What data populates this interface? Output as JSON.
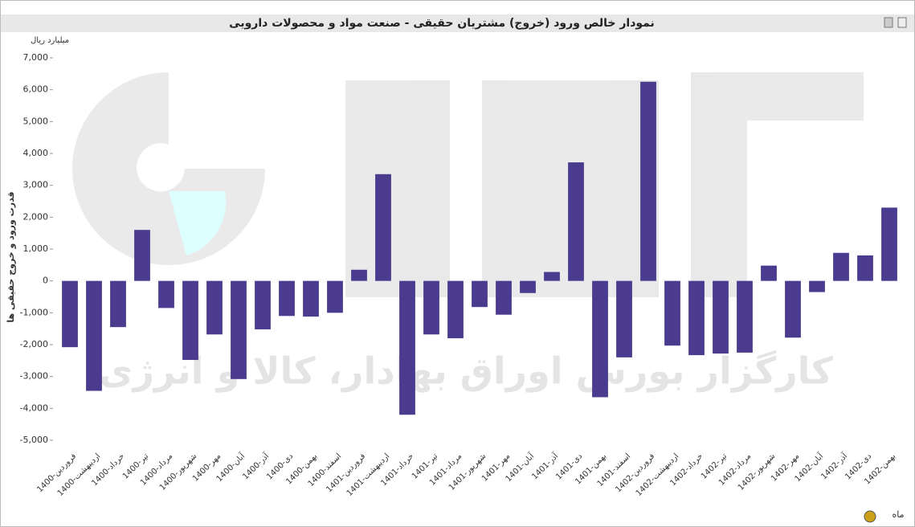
{
  "chart_data": {
    "type": "bar",
    "title": "نمودار خالص ورود (خروج) مشتریان حقیقی - صنعت مواد و محصولات دارویی",
    "unit_label": "میلیارد ریال",
    "y_axis_title": "قدرت ورود و خروج حقیقی ها",
    "x_axis_title": "ماه",
    "watermark": "کارگزار بورس اوراق بهادار، کالا و انرژی",
    "categories": [
      "1400-فروردین",
      "1400-اردیبهشت",
      "1400-خرداد",
      "1400-تیر",
      "1400-مرداد",
      "1400-شهریور",
      "1400-مهر",
      "1400-آبان",
      "1400-آذر",
      "1400-دی",
      "1400-بهمن",
      "1400-اسفند",
      "1401-فروردین",
      "1401-اردیبهشت",
      "1401-خرداد",
      "1401-تیر",
      "1401-مرداد",
      "1401-شهریور",
      "1401-مهر",
      "1401-آبان",
      "1401-آذر",
      "1401-دی",
      "1401-بهمن",
      "1401-اسفند",
      "1402-فروردین",
      "1402-اردیبهشت",
      "1402-خرداد",
      "1402-تیر",
      "1402-مرداد",
      "1402-شهریور",
      "1402-مهر",
      "1402-آبان",
      "1402-آذر",
      "1402-دی",
      "1402-بهمن"
    ],
    "values": [
      -2080,
      -3450,
      -1450,
      1600,
      -850,
      -2480,
      -1680,
      -3080,
      -1520,
      -1100,
      -1120,
      -1000,
      350,
      3350,
      -4200,
      -1680,
      -1800,
      -820,
      -1060,
      -380,
      280,
      3720,
      -3650,
      -2400,
      6250,
      -2030,
      -2330,
      -2280,
      -2250,
      480,
      -1780,
      -350,
      880,
      800,
      2300
    ],
    "color": "#4b3b8f",
    "ylim": [
      -5000,
      7000
    ],
    "yticks": [
      {
        "value": -5000,
        "label": "-5,000"
      },
      {
        "value": -4000,
        "label": "-4,000"
      },
      {
        "value": -3000,
        "label": "-3,000"
      },
      {
        "value": -2000,
        "label": "-2,000"
      },
      {
        "value": -1000,
        "label": "-1,000"
      },
      0,
      {
        "value": 1000,
        "label": "1,000"
      },
      {
        "value": 2000,
        "label": "2,000"
      },
      {
        "value": 3000,
        "label": "3,000"
      },
      {
        "value": 4000,
        "label": "4,000"
      },
      {
        "value": 5000,
        "label": "5,000"
      },
      {
        "value": 6000,
        "label": "6,000"
      },
      {
        "value": 7000,
        "label": "7,000"
      }
    ],
    "grid": false
  }
}
